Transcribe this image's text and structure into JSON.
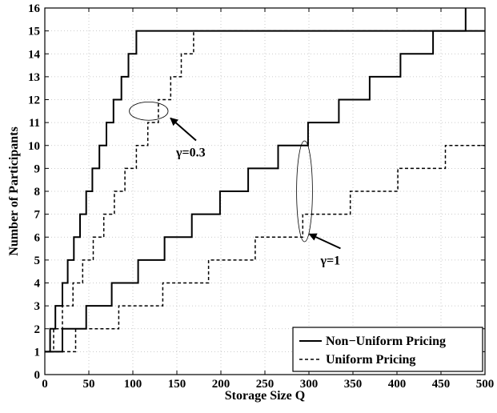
{
  "chart_data": {
    "type": "line",
    "step": true,
    "xlabel": "Storage Size Q",
    "ylabel": "Number of Participants",
    "xlim": [
      0,
      500
    ],
    "ylim": [
      0,
      16
    ],
    "xticks": [
      0,
      50,
      100,
      150,
      200,
      250,
      300,
      350,
      400,
      450,
      500
    ],
    "yticks": [
      0,
      1,
      2,
      3,
      4,
      5,
      6,
      7,
      8,
      9,
      10,
      11,
      12,
      13,
      14,
      15,
      16
    ],
    "grid": true,
    "legend": {
      "position": "bottom-right",
      "entries": [
        {
          "label": "Non−Uniform Pricing",
          "style": "solid"
        },
        {
          "label": "Uniform Pricing",
          "style": "dashed"
        }
      ]
    },
    "series": [
      {
        "group": "γ=0.3",
        "style": "solid",
        "points": [
          [
            0,
            1
          ],
          [
            6,
            1
          ],
          [
            6,
            2
          ],
          [
            12,
            2
          ],
          [
            12,
            3
          ],
          [
            20,
            3
          ],
          [
            20,
            4
          ],
          [
            26,
            4
          ],
          [
            26,
            5
          ],
          [
            33,
            5
          ],
          [
            33,
            6
          ],
          [
            40,
            6
          ],
          [
            40,
            7
          ],
          [
            47,
            7
          ],
          [
            47,
            8
          ],
          [
            54,
            8
          ],
          [
            54,
            9
          ],
          [
            62,
            9
          ],
          [
            62,
            10
          ],
          [
            70,
            10
          ],
          [
            70,
            11
          ],
          [
            78,
            11
          ],
          [
            78,
            12
          ],
          [
            87,
            12
          ],
          [
            87,
            13
          ],
          [
            95,
            13
          ],
          [
            95,
            14
          ],
          [
            104,
            14
          ],
          [
            104,
            15
          ],
          [
            113,
            15
          ],
          [
            500,
            15
          ]
        ]
      },
      {
        "group": "γ=0.3",
        "style": "dashed",
        "points": [
          [
            0,
            1
          ],
          [
            10,
            1
          ],
          [
            10,
            2
          ],
          [
            20,
            2
          ],
          [
            20,
            3
          ],
          [
            32,
            3
          ],
          [
            32,
            4
          ],
          [
            43,
            4
          ],
          [
            43,
            5
          ],
          [
            55,
            5
          ],
          [
            55,
            6
          ],
          [
            67,
            6
          ],
          [
            67,
            7
          ],
          [
            79,
            7
          ],
          [
            79,
            8
          ],
          [
            91,
            8
          ],
          [
            91,
            9
          ],
          [
            104,
            9
          ],
          [
            104,
            10
          ],
          [
            117,
            10
          ],
          [
            117,
            11
          ],
          [
            129,
            11
          ],
          [
            129,
            12
          ],
          [
            143,
            12
          ],
          [
            143,
            13
          ],
          [
            155,
            13
          ],
          [
            155,
            14
          ],
          [
            169,
            14
          ],
          [
            169,
            15
          ],
          [
            500,
            15
          ]
        ]
      },
      {
        "group": "γ=1",
        "style": "solid",
        "points": [
          [
            0,
            1
          ],
          [
            20,
            1
          ],
          [
            20,
            2
          ],
          [
            47,
            2
          ],
          [
            47,
            3
          ],
          [
            76,
            3
          ],
          [
            76,
            4
          ],
          [
            106,
            4
          ],
          [
            106,
            5
          ],
          [
            136,
            5
          ],
          [
            136,
            6
          ],
          [
            167,
            6
          ],
          [
            167,
            7
          ],
          [
            199,
            7
          ],
          [
            199,
            8
          ],
          [
            231,
            8
          ],
          [
            231,
            9
          ],
          [
            265,
            9
          ],
          [
            265,
            10
          ],
          [
            299,
            10
          ],
          [
            299,
            11
          ],
          [
            334,
            11
          ],
          [
            334,
            12
          ],
          [
            369,
            12
          ],
          [
            369,
            13
          ],
          [
            404,
            13
          ],
          [
            404,
            14
          ],
          [
            441,
            14
          ],
          [
            441,
            15
          ],
          [
            478,
            15
          ],
          [
            478,
            16
          ]
        ]
      },
      {
        "group": "γ=1",
        "style": "dashed",
        "points": [
          [
            0,
            1
          ],
          [
            35,
            1
          ],
          [
            35,
            2
          ],
          [
            84,
            2
          ],
          [
            84,
            3
          ],
          [
            134,
            3
          ],
          [
            134,
            4
          ],
          [
            186,
            4
          ],
          [
            186,
            5
          ],
          [
            239,
            5
          ],
          [
            239,
            6
          ],
          [
            293,
            6
          ],
          [
            293,
            7
          ],
          [
            347,
            7
          ],
          [
            347,
            8
          ],
          [
            401,
            8
          ],
          [
            401,
            9
          ],
          [
            455,
            9
          ],
          [
            455,
            10
          ],
          [
            500,
            10
          ]
        ]
      }
    ],
    "annotations": [
      {
        "text": "γ=0.3",
        "target": [
          118,
          11.5
        ],
        "ellipse_rx_data": 22,
        "ellipse_ry_data": 0.4
      },
      {
        "text": "γ=1",
        "target": [
          295,
          8
        ],
        "ellipse_rx_data": 9,
        "ellipse_ry_data": 2.2
      }
    ]
  }
}
